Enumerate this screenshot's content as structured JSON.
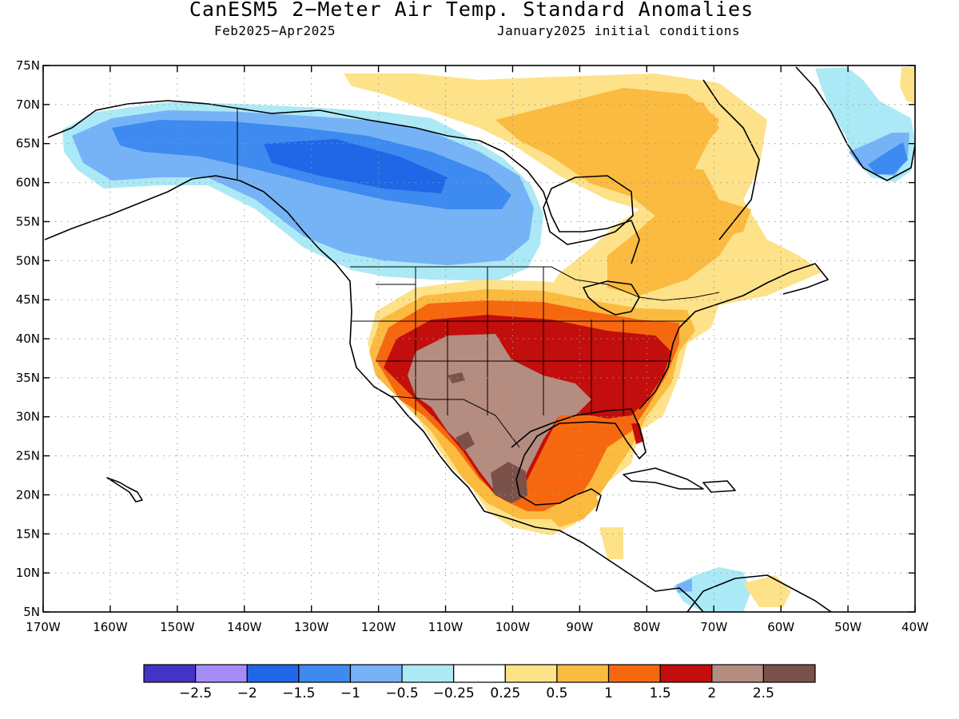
{
  "header": {
    "title": "CanESM5 2−Meter Air Temp. Standard Anomalies",
    "period": "Feb2025−Apr2025",
    "init": "January2025 initial conditions"
  },
  "axes": {
    "lat_labels": [
      "75N",
      "70N",
      "65N",
      "60N",
      "55N",
      "50N",
      "45N",
      "40N",
      "35N",
      "30N",
      "25N",
      "20N",
      "15N",
      "10N",
      "5N"
    ],
    "lon_labels": [
      "170W",
      "160W",
      "150W",
      "140W",
      "130W",
      "120W",
      "110W",
      "100W",
      "90W",
      "80W",
      "70W",
      "60W",
      "50W",
      "40W"
    ]
  },
  "colorbar": {
    "labels": [
      "−2.5",
      "−2",
      "−1.5",
      "−1",
      "−0.5",
      "−0.25",
      "0.25",
      "0.5",
      "1",
      "1.5",
      "2",
      "2.5"
    ],
    "colors": [
      "#4433c4",
      "#a48cf8",
      "#1f67e6",
      "#3d8af0",
      "#76b3f6",
      "#ace9f6",
      "#ffffff",
      "#fde289",
      "#fbba40",
      "#f66810",
      "#c20e0c",
      "#b48c80",
      "#7a524a"
    ]
  }
}
